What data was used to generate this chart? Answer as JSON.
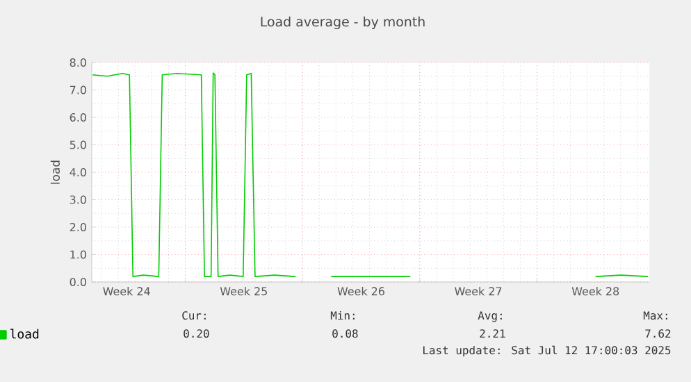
{
  "chart_data": {
    "type": "line",
    "title": "Load average - by month",
    "ylabel": "load",
    "x": [
      "2025-06-09T11:00",
      "2025-06-10T08:00",
      "2025-06-11T06:00",
      "2025-06-11T16:00",
      "2025-06-11T21:00",
      "2025-06-12T12:00",
      "2025-06-13T10:00",
      "2025-06-13T15:00",
      "2025-06-14T12:00",
      "2025-06-15T23:00",
      "2025-06-16T03:30",
      "2025-06-16T13:00",
      "2025-06-16T16:00",
      "2025-06-16T18:30",
      "2025-06-16T23:00",
      "2025-06-17T16:00",
      "2025-06-18T11:00",
      "2025-06-18T16:00",
      "2025-06-18T22:30",
      "2025-06-19T04:00",
      "2025-06-20T08:00",
      "2025-06-21T14:00",
      "2025-06-22T12:00",
      "2025-06-23T17:00",
      "2025-06-25T12:00",
      "2025-06-28T10:30",
      "2025-07-03T00:00",
      "2025-07-09T12:00",
      "2025-07-11T00:00",
      "2025-07-12T15:00"
    ],
    "series": [
      {
        "name": "load",
        "color": "#00cc00",
        "values": [
          7.55,
          7.5,
          7.6,
          7.55,
          0.2,
          0.25,
          0.2,
          7.55,
          7.6,
          7.55,
          0.2,
          0.2,
          7.62,
          7.55,
          0.2,
          0.25,
          0.2,
          7.55,
          7.6,
          0.2,
          0.25,
          0.2,
          null,
          0.2,
          0.2,
          0.2,
          null,
          0.2,
          0.25,
          0.2
        ]
      }
    ],
    "xlim": [
      "2025-06-09T10:00",
      "2025-07-12T17:00"
    ],
    "xticks": [
      {
        "value": "2025-06-11T12:00",
        "label": "Week 24"
      },
      {
        "value": "2025-06-18T12:00",
        "label": "Week 25"
      },
      {
        "value": "2025-06-25T12:00",
        "label": "Week 26"
      },
      {
        "value": "2025-07-02T12:00",
        "label": "Week 27"
      },
      {
        "value": "2025-07-09T12:00",
        "label": "Week 28"
      },
      {
        "value": "2025-06-15",
        "label": null
      },
      {
        "value": "2025-06-22",
        "label": null
      },
      {
        "value": "2025-06-29",
        "label": null
      },
      {
        "value": "2025-07-06",
        "label": null
      }
    ],
    "ylim": [
      0,
      8
    ],
    "yticks": [
      {
        "value": 0,
        "label": "0.0"
      },
      {
        "value": 1,
        "label": "1.0"
      },
      {
        "value": 2,
        "label": "2.0"
      },
      {
        "value": 3,
        "label": "3.0"
      },
      {
        "value": 4,
        "label": "4.0"
      },
      {
        "value": 5,
        "label": "5.0"
      },
      {
        "value": 6,
        "label": "6.0"
      },
      {
        "value": 7,
        "label": "7.0"
      },
      {
        "value": 8,
        "label": "8.0"
      }
    ],
    "grid": true,
    "legend": "bottom",
    "annotations": [
      "Cur:",
      "Min:",
      "Avg:",
      "Max:",
      "0.20",
      "0.08",
      "2.21",
      "7.62",
      "Last update: Sat Jul 12 17:00:03 2025"
    ]
  }
}
